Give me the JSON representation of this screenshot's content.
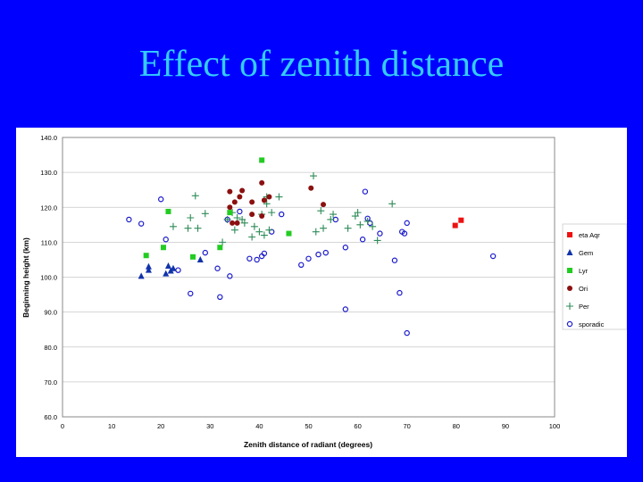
{
  "slide": {
    "title": "Effect of zenith distance"
  },
  "chart_data": {
    "type": "scatter",
    "xlabel": "Zenith distance of radiant (degrees)",
    "ylabel": "Beginning height (km)",
    "xlim": [
      0,
      100
    ],
    "ylim": [
      60,
      140
    ],
    "xticks": [
      "0",
      "10",
      "20",
      "30",
      "40",
      "50",
      "60",
      "70",
      "80",
      "90",
      "100"
    ],
    "yticks": [
      "60.0",
      "70.0",
      "80.0",
      "90.0",
      "100.0",
      "110.0",
      "120.0",
      "130.0",
      "140.0"
    ],
    "grid": true,
    "legend_position": "right",
    "series": [
      {
        "name": "eta Aqr",
        "marker": "square",
        "color": "#ee1111",
        "points": [
          [
            79.8,
            114.8
          ],
          [
            81,
            116.3
          ]
        ]
      },
      {
        "name": "Gem",
        "marker": "triangle",
        "color": "#1133aa",
        "points": [
          [
            16,
            100.3
          ],
          [
            17.5,
            102
          ],
          [
            17.5,
            103
          ],
          [
            21,
            101
          ],
          [
            21.5,
            103.2
          ],
          [
            22,
            101.8
          ],
          [
            22.5,
            102.5
          ],
          [
            28,
            105
          ]
        ]
      },
      {
        "name": "Lyr",
        "marker": "square",
        "color": "#22cc22",
        "points": [
          [
            17,
            106.2
          ],
          [
            20.5,
            108.5
          ],
          [
            21.5,
            118.8
          ],
          [
            26.5,
            105.8
          ],
          [
            32,
            108.5
          ],
          [
            34,
            118.5
          ],
          [
            40.5,
            133.5
          ],
          [
            46,
            112.5
          ]
        ]
      },
      {
        "name": "Ori",
        "marker": "circle",
        "color": "#8b1010",
        "points": [
          [
            34,
            120
          ],
          [
            34,
            124.5
          ],
          [
            34.5,
            115.5
          ],
          [
            35,
            121.5
          ],
          [
            35.5,
            115.5
          ],
          [
            36,
            123
          ],
          [
            36.5,
            124.8
          ],
          [
            38.5,
            118
          ],
          [
            38.5,
            121.5
          ],
          [
            40.5,
            117.5
          ],
          [
            40.5,
            127
          ],
          [
            41,
            122
          ],
          [
            42,
            123
          ],
          [
            50.5,
            125.5
          ],
          [
            53,
            120.8
          ]
        ]
      },
      {
        "name": "Per",
        "marker": "plus",
        "color": "#2e8b57",
        "points": [
          [
            22.5,
            114.5
          ],
          [
            25.5,
            114
          ],
          [
            26,
            117
          ],
          [
            27,
            123.3
          ],
          [
            27.5,
            114
          ],
          [
            29,
            118.2
          ],
          [
            32.5,
            110
          ],
          [
            33.5,
            116.5
          ],
          [
            34.5,
            118.5
          ],
          [
            35,
            113.5
          ],
          [
            35.5,
            117
          ],
          [
            36.5,
            116.5
          ],
          [
            37,
            115.5
          ],
          [
            38.5,
            111.5
          ],
          [
            39,
            114.5
          ],
          [
            40,
            113
          ],
          [
            40.5,
            118
          ],
          [
            41,
            112
          ],
          [
            41.5,
            121
          ],
          [
            41.5,
            123
          ],
          [
            42,
            113.5
          ],
          [
            42.5,
            118.5
          ],
          [
            44,
            123
          ],
          [
            51,
            129
          ],
          [
            51.5,
            113
          ],
          [
            52.5,
            119
          ],
          [
            53,
            114
          ],
          [
            54.5,
            116.5
          ],
          [
            55,
            118
          ],
          [
            58,
            114
          ],
          [
            59.5,
            117.5
          ],
          [
            60,
            118.5
          ],
          [
            60.5,
            115
          ],
          [
            62,
            116
          ],
          [
            63,
            114.5
          ],
          [
            64,
            110.5
          ],
          [
            67,
            121
          ]
        ]
      },
      {
        "name": "sporadic",
        "marker": "open-circle",
        "color": "#1a1acc",
        "points": [
          [
            13.5,
            116.5
          ],
          [
            16,
            115.3
          ],
          [
            20,
            122.3
          ],
          [
            21,
            110.8
          ],
          [
            23.5,
            102
          ],
          [
            26,
            95.3
          ],
          [
            29,
            107
          ],
          [
            31.5,
            102.5
          ],
          [
            32,
            94.3
          ],
          [
            33.5,
            116.5
          ],
          [
            34,
            100.3
          ],
          [
            36,
            118.8
          ],
          [
            38,
            105.3
          ],
          [
            39.5,
            105
          ],
          [
            40.5,
            106
          ],
          [
            41,
            106.8
          ],
          [
            42.5,
            113
          ],
          [
            44.5,
            118
          ],
          [
            48.5,
            103.5
          ],
          [
            50,
            105.3
          ],
          [
            52,
            106.5
          ],
          [
            53.5,
            107
          ],
          [
            55.5,
            116.5
          ],
          [
            57.5,
            108.5
          ],
          [
            57.5,
            90.8
          ],
          [
            61,
            110.8
          ],
          [
            61.5,
            124.5
          ],
          [
            62,
            116.8
          ],
          [
            62.5,
            115.5
          ],
          [
            64.5,
            112.5
          ],
          [
            67.5,
            104.8
          ],
          [
            68.5,
            95.5
          ],
          [
            69,
            113
          ],
          [
            69.5,
            112.5
          ],
          [
            70,
            84
          ],
          [
            70,
            115.5
          ],
          [
            87.5,
            106
          ]
        ]
      }
    ]
  }
}
